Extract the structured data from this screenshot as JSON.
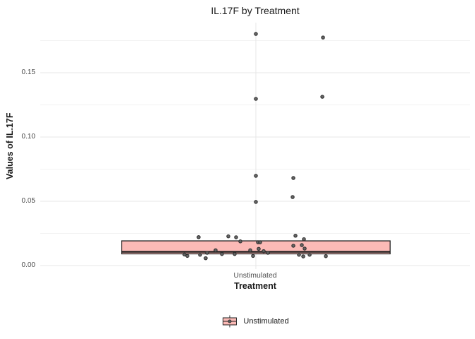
{
  "title": "IL.17F by Treatment",
  "axes": {
    "y_label": "Values of IL.17F",
    "x_label": "Treatment",
    "x_tick": "Unstimulated"
  },
  "legend": {
    "label": "Unstimulated"
  },
  "colors": {
    "box_fill": "#fbbab6",
    "box_stroke": "#1f1f1f",
    "point_fill": "#606060",
    "point_stroke": "#303030",
    "grid_major": "#e7e7e7",
    "grid_minor": "#f2f2f2",
    "tick_text": "#4d4d4d",
    "text": "#1a1a1a",
    "background": "#ffffff"
  },
  "chart_data": {
    "type": "boxplot_jitter",
    "title": "IL.17F by Treatment",
    "xlabel": "Treatment",
    "ylabel": "Values of IL.17F",
    "categories": [
      "Unstimulated"
    ],
    "ylim": [
      -0.003,
      0.189
    ],
    "grid": true,
    "legend_position": "bottom",
    "y_major_ticks": [
      {
        "label": "0.00",
        "value": 0.0
      },
      {
        "label": "0.05",
        "value": 0.05
      },
      {
        "label": "0.10",
        "value": 0.1
      },
      {
        "label": "0.15",
        "value": 0.15
      }
    ],
    "y_minor_ticks": [
      0.025,
      0.075,
      0.125,
      0.175
    ],
    "box": {
      "q1": 0.0091,
      "median": 0.0107,
      "q3": 0.0192
    },
    "points": [
      {
        "dx": 0,
        "v": 0.1802
      },
      {
        "dx": 95,
        "v": 0.1774
      },
      {
        "dx": 0,
        "v": 0.1297
      },
      {
        "dx": 94,
        "v": 0.1313
      },
      {
        "dx": 0,
        "v": 0.0698
      },
      {
        "dx": 53,
        "v": 0.0681
      },
      {
        "dx": 52,
        "v": 0.0533
      },
      {
        "dx": 0,
        "v": 0.0495
      },
      {
        "dx": -81,
        "v": 0.0221
      },
      {
        "dx": -39,
        "v": 0.0227
      },
      {
        "dx": -28,
        "v": 0.022
      },
      {
        "dx": -22,
        "v": 0.0188
      },
      {
        "dx": 56,
        "v": 0.0232
      },
      {
        "dx": 68,
        "v": 0.0205
      },
      {
        "dx": 3,
        "v": 0.0181
      },
      {
        "dx": 6,
        "v": 0.0181
      },
      {
        "dx": 53,
        "v": 0.0154
      },
      {
        "dx": 65,
        "v": 0.0159
      },
      {
        "dx": -57,
        "v": 0.0119
      },
      {
        "dx": -69,
        "v": 0.0099
      },
      {
        "dx": -48,
        "v": 0.009
      },
      {
        "dx": -30,
        "v": 0.009
      },
      {
        "dx": -101,
        "v": 0.0086
      },
      {
        "dx": -97,
        "v": 0.0075
      },
      {
        "dx": -79,
        "v": 0.0084
      },
      {
        "dx": -71,
        "v": 0.0057
      },
      {
        "dx": -8,
        "v": 0.0119
      },
      {
        "dx": -4,
        "v": 0.0075
      },
      {
        "dx": 4,
        "v": 0.013
      },
      {
        "dx": 11,
        "v": 0.0112
      },
      {
        "dx": 17,
        "v": 0.0099
      },
      {
        "dx": 69,
        "v": 0.0132
      },
      {
        "dx": 61,
        "v": 0.0084
      },
      {
        "dx": 67,
        "v": 0.0071
      },
      {
        "dx": 76,
        "v": 0.0084
      },
      {
        "dx": 99,
        "v": 0.0073
      }
    ]
  }
}
